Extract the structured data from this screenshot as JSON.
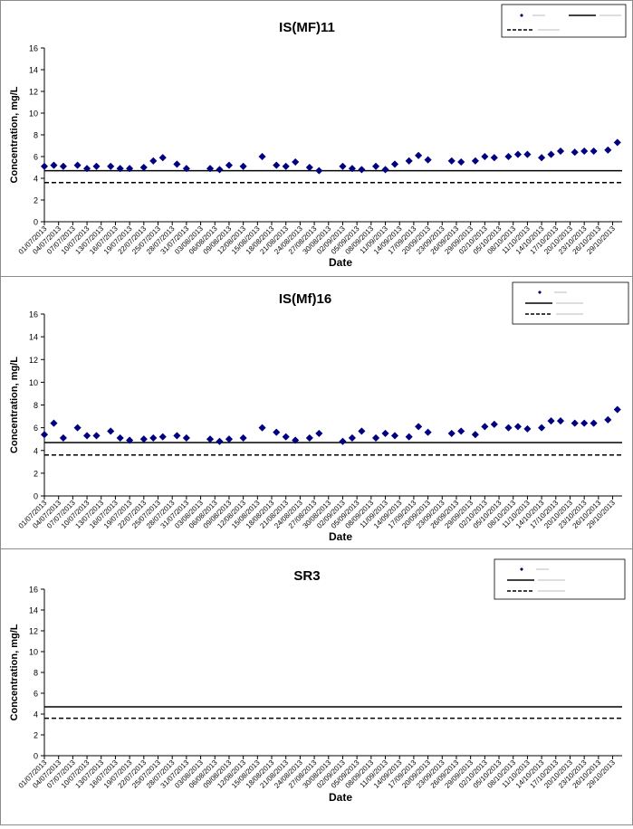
{
  "chart_data": [
    {
      "type": "scatter",
      "title": "IS(MF)11",
      "xlabel": "Date",
      "ylabel": "Concentration, mg/L",
      "ylim": [
        0,
        16
      ],
      "yticks": [
        "0",
        "2",
        "4",
        "6",
        "8",
        "10",
        "12",
        "14",
        "16"
      ],
      "x_tick_labels": [
        "01/07/2013",
        "04/07/2013",
        "07/07/2013",
        "10/07/2013",
        "13/07/2013",
        "16/07/2013",
        "19/07/2013",
        "22/07/2013",
        "25/07/2013",
        "28/07/2013",
        "31/07/2013",
        "03/08/2013",
        "06/08/2013",
        "09/08/2013",
        "12/08/2013",
        "15/08/2013",
        "18/08/2013",
        "21/08/2013",
        "24/08/2013",
        "27/08/2013",
        "30/08/2013",
        "02/09/2013",
        "05/09/2013",
        "08/09/2013",
        "11/09/2013",
        "14/09/2013",
        "17/09/2013",
        "20/09/2013",
        "23/09/2013",
        "26/09/2013",
        "29/09/2013",
        "02/10/2013",
        "05/10/2013",
        "08/10/2013",
        "11/10/2013",
        "14/10/2013",
        "17/10/2013",
        "20/10/2013",
        "23/10/2013",
        "26/10/2013",
        "29/10/2013"
      ],
      "grid": false,
      "legend_position": "top-right",
      "legend_text_legible": false,
      "series": [
        {
          "marker": "diamond",
          "color": "#000080",
          "points": [
            {
              "x": "01/07/2013",
              "y": 5.1
            },
            {
              "x": "03/07/2013",
              "y": 5.2
            },
            {
              "x": "05/07/2013",
              "y": 5.1
            },
            {
              "x": "08/07/2013",
              "y": 5.2
            },
            {
              "x": "10/07/2013",
              "y": 4.9
            },
            {
              "x": "12/07/2013",
              "y": 5.1
            },
            {
              "x": "15/07/2013",
              "y": 5.1
            },
            {
              "x": "17/07/2013",
              "y": 4.9
            },
            {
              "x": "19/07/2013",
              "y": 4.9
            },
            {
              "x": "22/07/2013",
              "y": 5.0
            },
            {
              "x": "24/07/2013",
              "y": 5.6
            },
            {
              "x": "26/07/2013",
              "y": 5.9
            },
            {
              "x": "29/07/2013",
              "y": 5.3
            },
            {
              "x": "31/07/2013",
              "y": 4.9
            },
            {
              "x": "05/08/2013",
              "y": 4.9
            },
            {
              "x": "07/08/2013",
              "y": 4.8
            },
            {
              "x": "09/08/2013",
              "y": 5.2
            },
            {
              "x": "12/08/2013",
              "y": 5.1
            },
            {
              "x": "16/08/2013",
              "y": 6.0
            },
            {
              "x": "19/08/2013",
              "y": 5.2
            },
            {
              "x": "21/08/2013",
              "y": 5.1
            },
            {
              "x": "23/08/2013",
              "y": 5.5
            },
            {
              "x": "26/08/2013",
              "y": 5.0
            },
            {
              "x": "28/08/2013",
              "y": 4.7
            },
            {
              "x": "02/09/2013",
              "y": 5.1
            },
            {
              "x": "04/09/2013",
              "y": 4.9
            },
            {
              "x": "06/09/2013",
              "y": 4.8
            },
            {
              "x": "09/09/2013",
              "y": 5.1
            },
            {
              "x": "11/09/2013",
              "y": 4.8
            },
            {
              "x": "13/09/2013",
              "y": 5.3
            },
            {
              "x": "16/09/2013",
              "y": 5.6
            },
            {
              "x": "18/09/2013",
              "y": 6.1
            },
            {
              "x": "20/09/2013",
              "y": 5.7
            },
            {
              "x": "25/09/2013",
              "y": 5.6
            },
            {
              "x": "27/09/2013",
              "y": 5.5
            },
            {
              "x": "30/09/2013",
              "y": 5.6
            },
            {
              "x": "02/10/2013",
              "y": 6.0
            },
            {
              "x": "04/10/2013",
              "y": 5.9
            },
            {
              "x": "07/10/2013",
              "y": 6.0
            },
            {
              "x": "09/10/2013",
              "y": 6.2
            },
            {
              "x": "11/10/2013",
              "y": 6.2
            },
            {
              "x": "14/10/2013",
              "y": 5.9
            },
            {
              "x": "16/10/2013",
              "y": 6.2
            },
            {
              "x": "18/10/2013",
              "y": 6.5
            },
            {
              "x": "21/10/2013",
              "y": 6.4
            },
            {
              "x": "23/10/2013",
              "y": 6.5
            },
            {
              "x": "25/10/2013",
              "y": 6.5
            },
            {
              "x": "28/10/2013",
              "y": 6.6
            },
            {
              "x": "30/10/2013",
              "y": 7.3
            }
          ]
        },
        {
          "style": "solid",
          "color": "#000000",
          "y": 4.7
        },
        {
          "style": "dashed",
          "color": "#000000",
          "y": 3.6
        }
      ]
    },
    {
      "type": "scatter",
      "title": "IS(Mf)16",
      "xlabel": "Date",
      "ylabel": "Concentration, mg/L",
      "ylim": [
        0,
        16
      ],
      "yticks": [
        "0",
        "2",
        "4",
        "6",
        "8",
        "10",
        "12",
        "14",
        "16"
      ],
      "x_tick_labels": [
        "01/07/2013",
        "04/07/2013",
        "07/07/2013",
        "10/07/2013",
        "13/07/2013",
        "16/07/2013",
        "19/07/2013",
        "22/07/2013",
        "25/07/2013",
        "28/07/2013",
        "31/07/2013",
        "03/08/2013",
        "06/08/2013",
        "09/08/2013",
        "12/08/2013",
        "15/08/2013",
        "18/08/2013",
        "21/08/2013",
        "24/08/2013",
        "27/08/2013",
        "30/08/2013",
        "02/09/2013",
        "05/09/2013",
        "08/09/2013",
        "11/09/2013",
        "14/09/2013",
        "17/09/2013",
        "20/09/2013",
        "23/09/2013",
        "26/09/2013",
        "29/09/2013",
        "02/10/2013",
        "05/10/2013",
        "08/10/2013",
        "11/10/2013",
        "14/10/2013",
        "17/10/2013",
        "20/10/2013",
        "23/10/2013",
        "26/10/2013",
        "29/10/2013"
      ],
      "grid": false,
      "legend_position": "top-right",
      "legend_text_legible": false,
      "series": [
        {
          "marker": "diamond",
          "color": "#000080",
          "points": [
            {
              "x": "01/07/2013",
              "y": 5.4
            },
            {
              "x": "03/07/2013",
              "y": 6.4
            },
            {
              "x": "05/07/2013",
              "y": 5.1
            },
            {
              "x": "08/07/2013",
              "y": 6.0
            },
            {
              "x": "10/07/2013",
              "y": 5.3
            },
            {
              "x": "12/07/2013",
              "y": 5.3
            },
            {
              "x": "15/07/2013",
              "y": 5.7
            },
            {
              "x": "17/07/2013",
              "y": 5.1
            },
            {
              "x": "19/07/2013",
              "y": 4.9
            },
            {
              "x": "22/07/2013",
              "y": 5.0
            },
            {
              "x": "24/07/2013",
              "y": 5.1
            },
            {
              "x": "26/07/2013",
              "y": 5.2
            },
            {
              "x": "29/07/2013",
              "y": 5.3
            },
            {
              "x": "31/07/2013",
              "y": 5.1
            },
            {
              "x": "05/08/2013",
              "y": 5.0
            },
            {
              "x": "07/08/2013",
              "y": 4.8
            },
            {
              "x": "09/08/2013",
              "y": 5.0
            },
            {
              "x": "12/08/2013",
              "y": 5.1
            },
            {
              "x": "16/08/2013",
              "y": 6.0
            },
            {
              "x": "19/08/2013",
              "y": 5.6
            },
            {
              "x": "21/08/2013",
              "y": 5.2
            },
            {
              "x": "23/08/2013",
              "y": 4.9
            },
            {
              "x": "26/08/2013",
              "y": 5.1
            },
            {
              "x": "28/08/2013",
              "y": 5.5
            },
            {
              "x": "02/09/2013",
              "y": 4.8
            },
            {
              "x": "04/09/2013",
              "y": 5.1
            },
            {
              "x": "06/09/2013",
              "y": 5.7
            },
            {
              "x": "09/09/2013",
              "y": 5.1
            },
            {
              "x": "11/09/2013",
              "y": 5.5
            },
            {
              "x": "13/09/2013",
              "y": 5.3
            },
            {
              "x": "16/09/2013",
              "y": 5.2
            },
            {
              "x": "18/09/2013",
              "y": 6.1
            },
            {
              "x": "20/09/2013",
              "y": 5.6
            },
            {
              "x": "25/09/2013",
              "y": 5.5
            },
            {
              "x": "27/09/2013",
              "y": 5.7
            },
            {
              "x": "30/09/2013",
              "y": 5.4
            },
            {
              "x": "02/10/2013",
              "y": 6.1
            },
            {
              "x": "04/10/2013",
              "y": 6.3
            },
            {
              "x": "07/10/2013",
              "y": 6.0
            },
            {
              "x": "09/10/2013",
              "y": 6.1
            },
            {
              "x": "11/10/2013",
              "y": 5.9
            },
            {
              "x": "14/10/2013",
              "y": 6.0
            },
            {
              "x": "16/10/2013",
              "y": 6.6
            },
            {
              "x": "18/10/2013",
              "y": 6.6
            },
            {
              "x": "21/10/2013",
              "y": 6.4
            },
            {
              "x": "23/10/2013",
              "y": 6.4
            },
            {
              "x": "25/10/2013",
              "y": 6.4
            },
            {
              "x": "28/10/2013",
              "y": 6.7
            },
            {
              "x": "30/10/2013",
              "y": 7.6
            }
          ]
        },
        {
          "style": "solid",
          "color": "#000000",
          "y": 4.7
        },
        {
          "style": "dashed",
          "color": "#000000",
          "y": 3.6
        }
      ]
    },
    {
      "type": "scatter",
      "title": "SR3",
      "xlabel": "Date",
      "ylabel": "Concentration, mg/L",
      "ylim": [
        0,
        16
      ],
      "yticks": [
        "0",
        "2",
        "4",
        "6",
        "8",
        "10",
        "12",
        "14",
        "16"
      ],
      "x_tick_labels": [
        "01/07/2013",
        "04/07/2013",
        "07/07/2013",
        "10/07/2013",
        "13/07/2013",
        "16/07/2013",
        "19/07/2013",
        "22/07/2013",
        "25/07/2013",
        "28/07/2013",
        "31/07/2013",
        "03/08/2013",
        "06/08/2013",
        "09/08/2013",
        "12/08/2013",
        "15/08/2013",
        "18/08/2013",
        "21/08/2013",
        "24/08/2013",
        "27/08/2013",
        "30/08/2013",
        "02/09/2013",
        "05/09/2013",
        "08/09/2013",
        "11/09/2013",
        "14/09/2013",
        "17/09/2013",
        "20/09/2013",
        "23/09/2013",
        "26/09/2013",
        "29/09/2013",
        "02/10/2013",
        "05/10/2013",
        "08/10/2013",
        "11/10/2013",
        "14/10/2013",
        "17/10/2013",
        "20/10/2013",
        "23/10/2013",
        "26/10/2013",
        "29/10/2013"
      ],
      "grid": false,
      "legend_position": "top-right",
      "legend_text_legible": false,
      "series": [
        {
          "marker": "diamond",
          "color": "#000080",
          "points": []
        },
        {
          "style": "solid",
          "color": "#000000",
          "y": 4.7
        },
        {
          "style": "dashed",
          "color": "#000000",
          "y": 3.6
        }
      ]
    }
  ]
}
